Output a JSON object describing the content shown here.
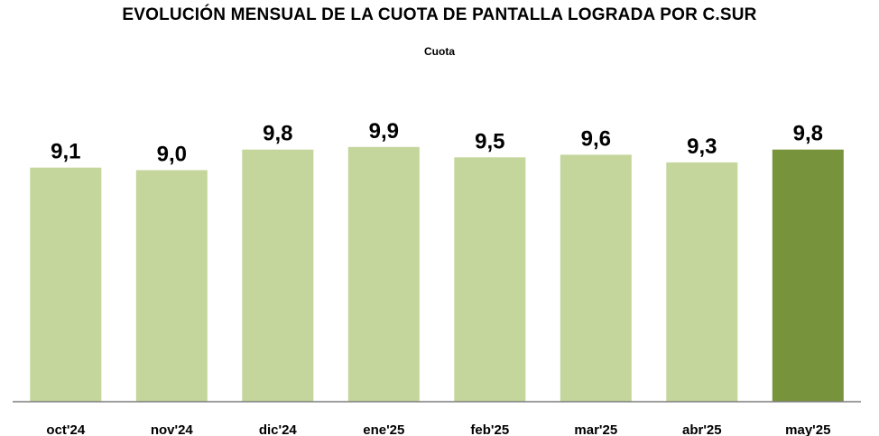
{
  "chart_data": {
    "type": "bar",
    "title": "EVOLUCIÓN MENSUAL DE LA CUOTA DE PANTALLA LOGRADA POR C.SUR",
    "subtitle": "Cuota",
    "categories": [
      "oct'24",
      "nov'24",
      "dic'24",
      "ene'25",
      "feb'25",
      "mar'25",
      "abr'25",
      "may'25"
    ],
    "values": [
      9.1,
      9.0,
      9.8,
      9.9,
      9.5,
      9.6,
      9.3,
      9.8
    ],
    "value_labels": [
      "9,1",
      "9,0",
      "9,8",
      "9,9",
      "9,5",
      "9,6",
      "9,3",
      "9,8"
    ],
    "ylim": [
      0,
      11.5
    ],
    "grid": false,
    "xlabel": "",
    "ylabel": "",
    "colors": {
      "bar": "#c4d69b",
      "highlight": "#77933c",
      "axis": "#7f7f7f",
      "text": "#000000"
    },
    "highlight_index": 7
  }
}
